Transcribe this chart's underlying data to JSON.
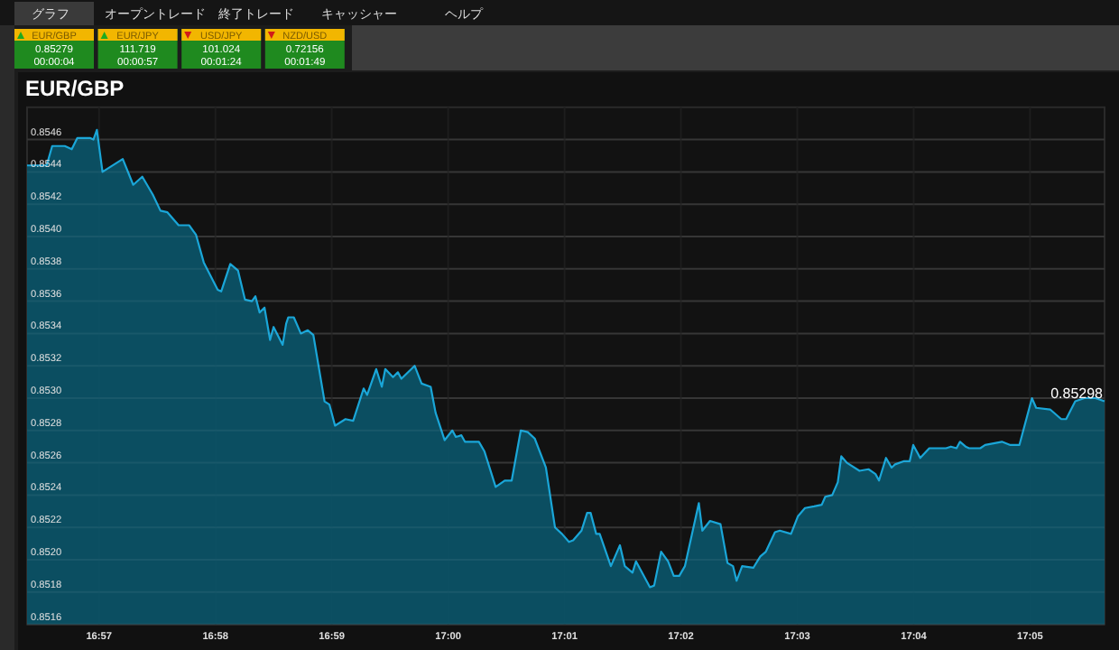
{
  "chart_data": {
    "type": "area",
    "title": "EUR/GBP",
    "annotations": [
      "グラフ",
      "オープントレード",
      "終了トレード",
      "キャッシャー",
      "ヘルプ",
      "EUR/GBP",
      "0.85279",
      "00:00:04",
      "EUR/JPY",
      "111.719",
      "00:00:57",
      "USD/JPY",
      "101.024",
      "00:01:24",
      "NZD/USD",
      "0.72156",
      "00:01:49",
      {
        "text": "0.85298",
        "x": 17.094,
        "y": 0.85298
      }
    ],
    "color": "#1aa6d8",
    "x": [
      16.9397,
      16.9425,
      16.9433,
      16.9451,
      16.9461,
      16.9469,
      16.9487,
      16.9492,
      16.9497,
      16.9505,
      16.9534,
      16.9549,
      16.9562,
      16.9577,
      16.9588,
      16.9598,
      16.9614,
      16.9629,
      16.9639,
      16.965,
      16.967,
      16.9675,
      16.9688,
      16.9699,
      16.9709,
      16.9719,
      16.9724,
      16.973,
      16.9737,
      16.9745,
      16.975,
      16.9763,
      16.9768,
      16.9771,
      16.9779,
      16.9789,
      16.9799,
      16.9807,
      16.9823,
      16.983,
      16.9838,
      16.9853,
      16.9864,
      16.9879,
      16.9884,
      16.9897,
      16.9905,
      16.991,
      16.9921,
      16.9928,
      16.9933,
      16.9952,
      16.9962,
      16.9975,
      16.9982,
      16.9995,
      17.0006,
      17.0011,
      17.0019,
      17.0024,
      17.0044,
      17.0052,
      17.0068,
      17.0081,
      17.0091,
      17.0104,
      17.0114,
      17.0124,
      17.014,
      17.0153,
      17.0163,
      17.0173,
      17.0179,
      17.0191,
      17.0199,
      17.0204,
      17.0212,
      17.0217,
      17.0233,
      17.0246,
      17.0253,
      17.0264,
      17.0269,
      17.0289,
      17.0295,
      17.0305,
      17.0315,
      17.0323,
      17.0331,
      17.0339,
      17.0359,
      17.0364,
      17.0375,
      17.039,
      17.04,
      17.0408,
      17.0413,
      17.0421,
      17.0437,
      17.0447,
      17.0455,
      17.0468,
      17.0475,
      17.0491,
      17.0501,
      17.0511,
      17.0524,
      17.0535,
      17.054,
      17.055,
      17.0558,
      17.0563,
      17.0571,
      17.0589,
      17.0602,
      17.0612,
      17.0617,
      17.0627,
      17.0635,
      17.064,
      17.0653,
      17.0661,
      17.0666,
      17.0676,
      17.0689,
      17.0713,
      17.072,
      17.0728,
      17.0733,
      17.0741,
      17.0746,
      17.0762,
      17.0769,
      17.0793,
      17.0805,
      17.0818,
      17.0836,
      17.0842,
      17.0862,
      17.0878,
      17.0885,
      17.0898,
      17.0911,
      17.0927,
      17.094
    ],
    "values": [
      0.85444,
      0.85444,
      0.85456,
      0.85456,
      0.85454,
      0.85461,
      0.85461,
      0.8546,
      0.85466,
      0.8544,
      0.85448,
      0.85432,
      0.85437,
      0.85426,
      0.85416,
      0.85415,
      0.85407,
      0.85407,
      0.85401,
      0.85384,
      0.85367,
      0.85366,
      0.85383,
      0.85379,
      0.85361,
      0.8536,
      0.85363,
      0.85353,
      0.85356,
      0.85336,
      0.85344,
      0.85333,
      0.85346,
      0.8535,
      0.8535,
      0.8534,
      0.85342,
      0.85339,
      0.85298,
      0.85296,
      0.85283,
      0.85287,
      0.85286,
      0.85306,
      0.85302,
      0.85318,
      0.85307,
      0.85318,
      0.85313,
      0.85316,
      0.85312,
      0.8532,
      0.85309,
      0.85307,
      0.85291,
      0.85274,
      0.8528,
      0.85276,
      0.85277,
      0.85273,
      0.85273,
      0.85267,
      0.85245,
      0.85249,
      0.85249,
      0.8528,
      0.85279,
      0.85275,
      0.85257,
      0.8522,
      0.85216,
      0.85211,
      0.85212,
      0.85218,
      0.85229,
      0.85229,
      0.85216,
      0.85216,
      0.85196,
      0.85209,
      0.85196,
      0.85192,
      0.85199,
      0.85183,
      0.85184,
      0.85205,
      0.85199,
      0.8519,
      0.8519,
      0.85196,
      0.85235,
      0.85218,
      0.85224,
      0.85222,
      0.85198,
      0.85196,
      0.85187,
      0.85196,
      0.85195,
      0.85202,
      0.85205,
      0.85217,
      0.85218,
      0.85216,
      0.85227,
      0.85232,
      0.85233,
      0.85234,
      0.85239,
      0.8524,
      0.85248,
      0.85264,
      0.8526,
      0.85255,
      0.85256,
      0.85253,
      0.85249,
      0.85263,
      0.85257,
      0.85259,
      0.85261,
      0.85261,
      0.85271,
      0.85263,
      0.85269,
      0.85269,
      0.8527,
      0.85269,
      0.85273,
      0.8527,
      0.85269,
      0.85269,
      0.85271,
      0.85273,
      0.85271,
      0.85271,
      0.853,
      0.85294,
      0.85293,
      0.85287,
      0.85287,
      0.85298,
      0.853,
      0.853,
      0.85298
    ],
    "xlim": [
      16.9397,
      17.094
    ],
    "ylim": [
      0.8516,
      0.8548
    ],
    "xticks": [
      {
        "value": 16.95,
        "label": "16:57"
      },
      {
        "value": 16.96667,
        "label": "16:58"
      },
      {
        "value": 16.98333,
        "label": "16:59"
      },
      {
        "value": 17,
        "label": "17:00"
      },
      {
        "value": 17.01667,
        "label": "17:01"
      },
      {
        "value": 17.03333,
        "label": "17:02"
      },
      {
        "value": 17.05,
        "label": "17:03"
      },
      {
        "value": 17.06667,
        "label": "17:04"
      },
      {
        "value": 17.08333,
        "label": "17:05"
      }
    ],
    "yticks": [
      0.8516,
      0.8518,
      {
        "value": 0.852,
        "label": "0.8520"
      },
      0.8522,
      0.8524,
      0.8526,
      0.8528,
      {
        "value": 0.853,
        "label": "0.8530"
      },
      0.8532,
      0.8534,
      0.8536,
      0.8538,
      {
        "value": 0.854,
        "label": "0.8540"
      },
      0.8542,
      0.8544,
      0.8546
    ],
    "grid": true
  }
}
